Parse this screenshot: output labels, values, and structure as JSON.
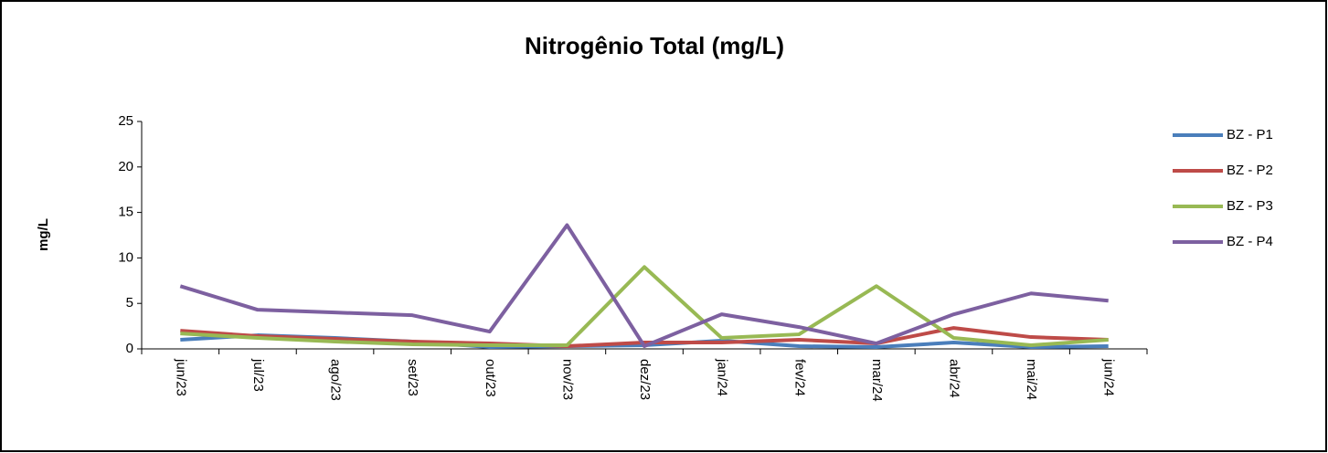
{
  "chart_data": {
    "type": "line",
    "title": "Nitrogênio Total (mg/L)",
    "y_label": "mg/L",
    "categories": [
      "jun/23",
      "jul/23",
      "ago/23",
      "set/23",
      "out/23",
      "nov/23",
      "dez/23",
      "jan/24",
      "fev/24",
      "mar/24",
      "abr/24",
      "mai/24",
      "jun/24"
    ],
    "series": [
      {
        "name": "BZ - P1",
        "color": "#4a7ebb",
        "values": [
          1.0,
          1.5,
          1.2,
          0.8,
          0.2,
          0.3,
          0.4,
          0.9,
          0.3,
          0.2,
          0.7,
          0.2,
          0.3
        ]
      },
      {
        "name": "BZ - P2",
        "color": "#be4b48",
        "values": [
          2.0,
          1.4,
          1.1,
          0.8,
          0.6,
          0.3,
          0.7,
          0.7,
          1.0,
          0.6,
          2.3,
          1.3,
          1.0
        ]
      },
      {
        "name": "BZ - P3",
        "color": "#98b954",
        "values": [
          1.7,
          1.2,
          0.8,
          0.5,
          0.4,
          0.4,
          9.0,
          1.2,
          1.6,
          6.9,
          1.2,
          0.4,
          1.0
        ]
      },
      {
        "name": "BZ - P4",
        "color": "#7d60a0",
        "values": [
          6.9,
          4.3,
          4.0,
          3.7,
          1.9,
          13.6,
          0.3,
          3.8,
          2.4,
          0.6,
          3.8,
          6.1,
          5.3
        ]
      }
    ],
    "ylim": [
      0,
      25
    ],
    "yticks": [
      0,
      5,
      10,
      15,
      20,
      25
    ],
    "legend": "right"
  }
}
